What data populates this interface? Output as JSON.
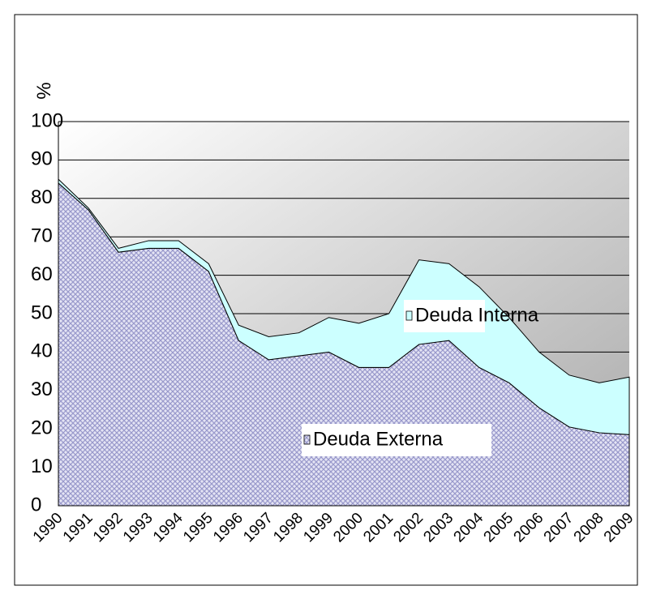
{
  "chart_data": {
    "type": "stacked_area",
    "y_label": "%",
    "categories": [
      "1990",
      "1991",
      "1992",
      "1993",
      "1994",
      "1995",
      "1996",
      "1997",
      "1998",
      "1999",
      "2000",
      "2001",
      "2002",
      "2003",
      "2004",
      "2005",
      "2006",
      "2007",
      "2008",
      "2009"
    ],
    "series": [
      {
        "name": "Deuda Externa",
        "color": "#9999cc",
        "values": [
          84,
          77,
          66,
          67,
          67,
          61,
          43,
          38,
          39,
          40,
          36,
          36,
          42,
          43,
          36,
          32,
          25.5,
          20.5,
          19,
          18.5
        ]
      },
      {
        "name": "Deuda Interna",
        "color": "#ccffff",
        "values": [
          1,
          0.5,
          1,
          2,
          2,
          2,
          4,
          6,
          6,
          9,
          11.5,
          14,
          22,
          20,
          21,
          17,
          14.5,
          13.5,
          13,
          15
        ]
      }
    ],
    "ylim": [
      0,
      100
    ],
    "yticks": [
      0,
      10,
      20,
      30,
      40,
      50,
      60,
      70,
      80,
      90,
      100
    ],
    "grid": true
  }
}
